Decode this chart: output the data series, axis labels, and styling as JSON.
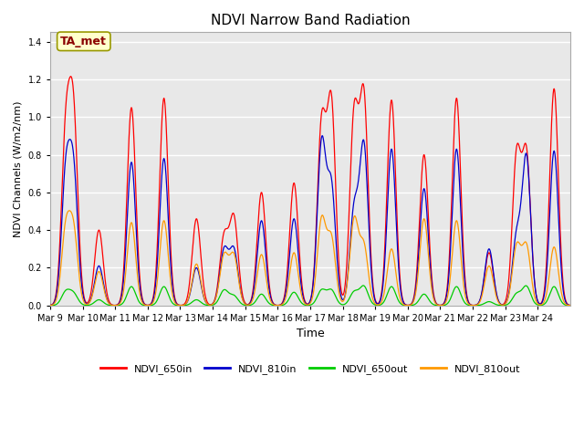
{
  "title": "NDVI Narrow Band Radiation",
  "ylabel": "NDVI Channels (W/m2/nm)",
  "xlabel": "Time",
  "annotation": "TA_met",
  "annotation_color": "#8B0000",
  "annotation_bg": "#FFFFCC",
  "n_days": 16,
  "ylim": [
    0,
    1.45
  ],
  "yticks": [
    0.0,
    0.2,
    0.4,
    0.6,
    0.8,
    1.0,
    1.2,
    1.4
  ],
  "xtick_labels": [
    "Mar 9",
    "Mar 10",
    "Mar 11",
    "Mar 12",
    "Mar 13",
    "Mar 14",
    "Mar 15",
    "Mar 16",
    "Mar 17",
    "Mar 18",
    "Mar 19",
    "Mar 20",
    "Mar 21",
    "Mar 22",
    "Mar 23",
    "Mar 24"
  ],
  "colors": {
    "NDVI_650in": "#FF0000",
    "NDVI_810in": "#0000CC",
    "NDVI_650out": "#00CC00",
    "NDVI_810out": "#FF9900"
  },
  "background_color": "#E8E8E8",
  "grid_color": "#FFFFFF",
  "channels": [
    "NDVI_650in",
    "NDVI_810in",
    "NDVI_650out",
    "NDVI_810out"
  ],
  "peak_times": [
    0.48,
    0.72,
    1.5,
    2.5,
    3.5,
    4.5,
    5.35,
    5.65,
    6.5,
    7.5,
    8.35,
    8.65,
    9.35,
    9.65,
    10.5,
    11.5,
    12.5,
    13.5,
    14.35,
    14.65,
    15.5
  ],
  "peak_sigma": 0.13,
  "day_peaks": {
    "NDVI_650in": [
      0.88,
      0.97,
      0.4,
      1.05,
      1.1,
      0.46,
      0.36,
      0.46,
      0.6,
      0.65,
      0.95,
      1.06,
      1.0,
      1.09,
      1.09,
      0.8,
      1.1,
      0.28,
      0.79,
      0.79,
      1.15
    ],
    "NDVI_810in": [
      0.67,
      0.68,
      0.21,
      0.76,
      0.78,
      0.2,
      0.29,
      0.29,
      0.45,
      0.46,
      0.85,
      0.62,
      0.5,
      0.84,
      0.83,
      0.62,
      0.83,
      0.3,
      0.36,
      0.78,
      0.82
    ],
    "NDVI_650out": [
      0.07,
      0.06,
      0.03,
      0.1,
      0.1,
      0.03,
      0.08,
      0.05,
      0.06,
      0.07,
      0.08,
      0.08,
      0.07,
      0.1,
      0.1,
      0.06,
      0.1,
      0.02,
      0.06,
      0.1,
      0.1
    ],
    "NDVI_810out": [
      0.39,
      0.38,
      0.18,
      0.44,
      0.45,
      0.22,
      0.26,
      0.26,
      0.27,
      0.28,
      0.45,
      0.35,
      0.45,
      0.31,
      0.3,
      0.46,
      0.45,
      0.21,
      0.31,
      0.31,
      0.31
    ]
  }
}
